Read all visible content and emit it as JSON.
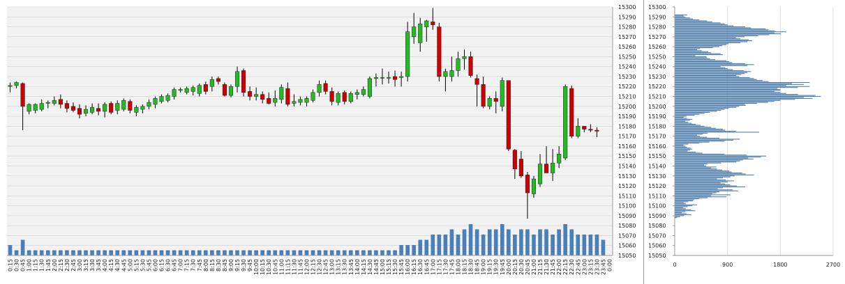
{
  "colors": {
    "plot_bg": "#f2f2f2",
    "grid": "#cfcfcf",
    "up": "#22bb22",
    "down": "#cc0000",
    "wick": "#000000",
    "volume": "#4a7fb8",
    "profile": "#4a7aa8"
  },
  "chart_data": [
    {
      "type": "candlestick",
      "ylim": [
        15050,
        15300
      ],
      "y_ticks": [
        "15050",
        "15060",
        "15070",
        "15080",
        "15090",
        "15100",
        "15110",
        "15120",
        "15130",
        "15140",
        "15150",
        "15160",
        "15170",
        "15180",
        "15190",
        "15200",
        "15210",
        "15220",
        "15230",
        "15240",
        "15250",
        "15260",
        "15270",
        "15280",
        "15290",
        "15300"
      ],
      "x_ticks": [
        "0:15",
        "0:30",
        "0:45",
        "1:00",
        "1:15",
        "1:30",
        "1:45",
        "2:00",
        "2:15",
        "2:30",
        "2:45",
        "3:00",
        "3:15",
        "3:30",
        "3:45",
        "4:00",
        "4:15",
        "4:30",
        "4:45",
        "5:00",
        "5:15",
        "5:30",
        "5:45",
        "6:00",
        "6:15",
        "6:30",
        "6:45",
        "7:00",
        "7:15",
        "7:30",
        "7:45",
        "8:00",
        "8:15",
        "8:30",
        "8:45",
        "9:00",
        "9:15",
        "9:30",
        "9:45",
        "10:00",
        "10:15",
        "10:30",
        "10:45",
        "11:00",
        "11:15",
        "11:30",
        "11:45",
        "12:00",
        "12:15",
        "12:30",
        "12:45",
        "13:00",
        "13:15",
        "13:30",
        "13:45",
        "14:00",
        "14:15",
        "14:30",
        "14:45",
        "15:00",
        "15:15",
        "15:30",
        "15:45",
        "16:00",
        "16:15",
        "16:30",
        "16:45",
        "17:00",
        "17:15",
        "17:30",
        "17:45",
        "18:00",
        "18:15",
        "18:30",
        "18:45",
        "19:00",
        "19:15",
        "19:30",
        "19:45",
        "20:00",
        "20:15",
        "20:30",
        "20:45",
        "21:00",
        "21:15",
        "21:30",
        "21:45",
        "22:00",
        "22:15",
        "22:30",
        "22:45",
        "23:00",
        "23:15",
        "23:30",
        "23:45",
        "0:00"
      ],
      "candles": [
        {
          "o": 15220,
          "h": 15224,
          "l": 15214,
          "c": 15221
        },
        {
          "o": 15221,
          "h": 15225,
          "l": 15218,
          "c": 15224
        },
        {
          "o": 15223,
          "h": 15224,
          "l": 15176,
          "c": 15200
        },
        {
          "o": 15195,
          "h": 15203,
          "l": 15192,
          "c": 15202
        },
        {
          "o": 15196,
          "h": 15203,
          "l": 15193,
          "c": 15202
        },
        {
          "o": 15197,
          "h": 15207,
          "l": 15195,
          "c": 15203
        },
        {
          "o": 15203,
          "h": 15206,
          "l": 15198,
          "c": 15204
        },
        {
          "o": 15203,
          "h": 15210,
          "l": 15201,
          "c": 15206
        },
        {
          "o": 15207,
          "h": 15212,
          "l": 15198,
          "c": 15202
        },
        {
          "o": 15203,
          "h": 15206,
          "l": 15194,
          "c": 15198
        },
        {
          "o": 15200,
          "h": 15204,
          "l": 15194,
          "c": 15196
        },
        {
          "o": 15198,
          "h": 15202,
          "l": 15188,
          "c": 15192
        },
        {
          "o": 15193,
          "h": 15201,
          "l": 15190,
          "c": 15197
        },
        {
          "o": 15194,
          "h": 15203,
          "l": 15192,
          "c": 15199
        },
        {
          "o": 15198,
          "h": 15203,
          "l": 15191,
          "c": 15195
        },
        {
          "o": 15195,
          "h": 15204,
          "l": 15189,
          "c": 15202
        },
        {
          "o": 15203,
          "h": 15205,
          "l": 15192,
          "c": 15194
        },
        {
          "o": 15196,
          "h": 15206,
          "l": 15192,
          "c": 15203
        },
        {
          "o": 15197,
          "h": 15208,
          "l": 15195,
          "c": 15206
        },
        {
          "o": 15205,
          "h": 15207,
          "l": 15193,
          "c": 15196
        },
        {
          "o": 15194,
          "h": 15201,
          "l": 15190,
          "c": 15199
        },
        {
          "o": 15197,
          "h": 15202,
          "l": 15193,
          "c": 15200
        },
        {
          "o": 15200,
          "h": 15207,
          "l": 15197,
          "c": 15204
        },
        {
          "o": 15202,
          "h": 15210,
          "l": 15198,
          "c": 15208
        },
        {
          "o": 15205,
          "h": 15212,
          "l": 15203,
          "c": 15210
        },
        {
          "o": 15206,
          "h": 15213,
          "l": 15204,
          "c": 15211
        },
        {
          "o": 15210,
          "h": 15219,
          "l": 15207,
          "c": 15217
        },
        {
          "o": 15216,
          "h": 15219,
          "l": 15214,
          "c": 15217
        },
        {
          "o": 15214,
          "h": 15220,
          "l": 15212,
          "c": 15218
        },
        {
          "o": 15215,
          "h": 15221,
          "l": 15211,
          "c": 15219
        },
        {
          "o": 15213,
          "h": 15223,
          "l": 15210,
          "c": 15221
        },
        {
          "o": 15222,
          "h": 15225,
          "l": 15212,
          "c": 15215
        },
        {
          "o": 15220,
          "h": 15230,
          "l": 15215,
          "c": 15227
        },
        {
          "o": 15228,
          "h": 15230,
          "l": 15222,
          "c": 15225
        },
        {
          "o": 15222,
          "h": 15224,
          "l": 15210,
          "c": 15211
        },
        {
          "o": 15211,
          "h": 15222,
          "l": 15209,
          "c": 15220
        },
        {
          "o": 15220,
          "h": 15240,
          "l": 15214,
          "c": 15235
        },
        {
          "o": 15236,
          "h": 15238,
          "l": 15210,
          "c": 15214
        },
        {
          "o": 15215,
          "h": 15220,
          "l": 15206,
          "c": 15210
        },
        {
          "o": 15210,
          "h": 15219,
          "l": 15206,
          "c": 15212
        },
        {
          "o": 15212,
          "h": 15215,
          "l": 15203,
          "c": 15207
        },
        {
          "o": 15208,
          "h": 15214,
          "l": 15202,
          "c": 15203
        },
        {
          "o": 15204,
          "h": 15216,
          "l": 15200,
          "c": 15208
        },
        {
          "o": 15207,
          "h": 15222,
          "l": 15203,
          "c": 15219
        },
        {
          "o": 15218,
          "h": 15224,
          "l": 15200,
          "c": 15202
        },
        {
          "o": 15203,
          "h": 15212,
          "l": 15200,
          "c": 15205
        },
        {
          "o": 15204,
          "h": 15210,
          "l": 15201,
          "c": 15207
        },
        {
          "o": 15204,
          "h": 15210,
          "l": 15200,
          "c": 15208
        },
        {
          "o": 15206,
          "h": 15217,
          "l": 15204,
          "c": 15214
        },
        {
          "o": 15214,
          "h": 15226,
          "l": 15210,
          "c": 15222
        },
        {
          "o": 15223,
          "h": 15226,
          "l": 15212,
          "c": 15215
        },
        {
          "o": 15215,
          "h": 15219,
          "l": 15201,
          "c": 15205
        },
        {
          "o": 15204,
          "h": 15215,
          "l": 15201,
          "c": 15213
        },
        {
          "o": 15214,
          "h": 15216,
          "l": 15202,
          "c": 15205
        },
        {
          "o": 15205,
          "h": 15215,
          "l": 15203,
          "c": 15213
        },
        {
          "o": 15212,
          "h": 15217,
          "l": 15207,
          "c": 15214
        },
        {
          "o": 15212,
          "h": 15220,
          "l": 15210,
          "c": 15217
        },
        {
          "o": 15210,
          "h": 15230,
          "l": 15208,
          "c": 15228
        },
        {
          "o": 15228,
          "h": 15233,
          "l": 15220,
          "c": 15229
        },
        {
          "o": 15229,
          "h": 15238,
          "l": 15222,
          "c": 15229
        },
        {
          "o": 15229,
          "h": 15235,
          "l": 15223,
          "c": 15229
        },
        {
          "o": 15230,
          "h": 15236,
          "l": 15220,
          "c": 15227
        },
        {
          "o": 15229,
          "h": 15235,
          "l": 15220,
          "c": 15230
        },
        {
          "o": 15230,
          "h": 15285,
          "l": 15225,
          "c": 15275
        },
        {
          "o": 15270,
          "h": 15294,
          "l": 15263,
          "c": 15280
        },
        {
          "o": 15264,
          "h": 15289,
          "l": 15255,
          "c": 15283
        },
        {
          "o": 15280,
          "h": 15287,
          "l": 15265,
          "c": 15286
        },
        {
          "o": 15285,
          "h": 15299,
          "l": 15277,
          "c": 15282
        },
        {
          "o": 15280,
          "h": 15284,
          "l": 15225,
          "c": 15230
        },
        {
          "o": 15230,
          "h": 15238,
          "l": 15215,
          "c": 15235
        },
        {
          "o": 15230,
          "h": 15250,
          "l": 15225,
          "c": 15236
        },
        {
          "o": 15236,
          "h": 15255,
          "l": 15230,
          "c": 15248
        },
        {
          "o": 15248,
          "h": 15257,
          "l": 15237,
          "c": 15250
        },
        {
          "o": 15250,
          "h": 15255,
          "l": 15229,
          "c": 15231
        },
        {
          "o": 15228,
          "h": 15232,
          "l": 15200,
          "c": 15222
        },
        {
          "o": 15222,
          "h": 15230,
          "l": 15198,
          "c": 15200
        },
        {
          "o": 15200,
          "h": 15210,
          "l": 15197,
          "c": 15208
        },
        {
          "o": 15208,
          "h": 15215,
          "l": 15193,
          "c": 15205
        },
        {
          "o": 15200,
          "h": 15229,
          "l": 15195,
          "c": 15226
        },
        {
          "o": 15226,
          "h": 15226,
          "l": 15155,
          "c": 15157
        },
        {
          "o": 15156,
          "h": 15157,
          "l": 15127,
          "c": 15137
        },
        {
          "o": 15147,
          "h": 15155,
          "l": 15128,
          "c": 15130
        },
        {
          "o": 15131,
          "h": 15134,
          "l": 15087,
          "c": 15113
        },
        {
          "o": 15112,
          "h": 15130,
          "l": 15108,
          "c": 15127
        },
        {
          "o": 15122,
          "h": 15152,
          "l": 15119,
          "c": 15142
        },
        {
          "o": 15142,
          "h": 15160,
          "l": 15135,
          "c": 15133
        },
        {
          "o": 15133,
          "h": 15157,
          "l": 15125,
          "c": 15143
        },
        {
          "o": 15143,
          "h": 15160,
          "l": 15138,
          "c": 15152
        },
        {
          "o": 15148,
          "h": 15222,
          "l": 15146,
          "c": 15220
        },
        {
          "o": 15218,
          "h": 15221,
          "l": 15168,
          "c": 15170
        },
        {
          "o": 15170,
          "h": 15188,
          "l": 15168,
          "c": 15180
        },
        {
          "o": 15180,
          "h": 15180,
          "l": 15174,
          "c": 15177
        },
        {
          "o": 15177,
          "h": 15182,
          "l": 15174,
          "c": 15176
        },
        {
          "o": 15176,
          "h": 15179,
          "l": 15169,
          "c": 15175
        }
      ],
      "volume": [
        2,
        1,
        3,
        1,
        1,
        1,
        1,
        1,
        1,
        1,
        1,
        1,
        1,
        1,
        1,
        1,
        1,
        1,
        1,
        1,
        1,
        1,
        1,
        1,
        1,
        1,
        1,
        1,
        1,
        1,
        1,
        1,
        1,
        1,
        1,
        1,
        1,
        1,
        1,
        1,
        1,
        1,
        1,
        1,
        1,
        1,
        1,
        1,
        1,
        1,
        1,
        1,
        1,
        1,
        1,
        1,
        1,
        1,
        1,
        1,
        1,
        1,
        2,
        2,
        2,
        3,
        3,
        4,
        4,
        4,
        5,
        4,
        5,
        6,
        5,
        4,
        5,
        5,
        6,
        5,
        4,
        5,
        5,
        4,
        5,
        5,
        4,
        5,
        6,
        5,
        4,
        4,
        4,
        4,
        3
      ]
    },
    {
      "type": "bar",
      "orientation": "horizontal",
      "xlim": [
        0,
        2700
      ],
      "x_ticks": [
        "0",
        "900",
        "1800",
        "2700"
      ],
      "ylim": [
        15050,
        15300
      ],
      "y_ticks": [
        "15050",
        "15060",
        "15070",
        "15080",
        "15090",
        "15100",
        "15110",
        "15120",
        "15130",
        "15140",
        "15150",
        "15160",
        "15170",
        "15180",
        "15190",
        "15200",
        "15210",
        "15220",
        "15230",
        "15240",
        "15250",
        "15260",
        "15270",
        "15280",
        "15290",
        "15300"
      ],
      "price_start": 15088,
      "price_step": 1,
      "values": [
        40,
        90,
        160,
        280,
        200,
        120,
        180,
        350,
        280,
        190,
        140,
        220,
        300,
        380,
        190,
        150,
        230,
        310,
        330,
        420,
        560,
        880,
        620,
        950,
        640,
        710,
        760,
        1080,
        990,
        730,
        820,
        1200,
        1060,
        940,
        860,
        780,
        900,
        1010,
        870,
        720,
        820,
        950,
        1020,
        1350,
        1210,
        1150,
        970,
        930,
        810,
        720,
        620,
        710,
        540,
        500,
        560,
        790,
        1050,
        1110,
        1160,
        1340,
        1250,
        1470,
        1560,
        1230,
        850,
        470,
        360,
        220,
        260,
        300,
        270,
        210,
        180,
        150,
        230,
        420,
        590,
        850,
        1000,
        1110,
        760,
        550,
        430,
        380,
        480,
        560,
        1440,
        1040,
        860,
        820,
        700,
        620,
        510,
        440,
        360,
        290,
        230,
        180,
        260,
        300,
        210,
        150,
        200,
        340,
        420,
        510,
        600,
        720,
        790,
        850,
        920,
        1050,
        1100,
        1210,
        1200,
        1400,
        1590,
        1700,
        1800,
        2050,
        2350,
        2200,
        2490,
        2400,
        2100,
        1900,
        1800,
        1700,
        1800,
        1800,
        1750,
        2100,
        2300,
        1900,
        2200,
        2000,
        2300,
        1600,
        1500,
        1400,
        1350,
        1280,
        1100,
        1050,
        1130,
        1190,
        1240,
        1300,
        1180,
        990,
        900,
        860,
        780,
        1240,
        1350,
        1200,
        980,
        930,
        880,
        690,
        600,
        550,
        540,
        350,
        820,
        780,
        620,
        570,
        460,
        380,
        430,
        650,
        760,
        810,
        880,
        920,
        1120,
        1240,
        1320,
        1260,
        1120,
        1040,
        1190,
        1420,
        1610,
        1810,
        1700,
        1900,
        1700,
        1600,
        1550,
        1300,
        1200,
        1000,
        900,
        850,
        780,
        640,
        550,
        420,
        310,
        260,
        180,
        150,
        210
      ]
    }
  ]
}
